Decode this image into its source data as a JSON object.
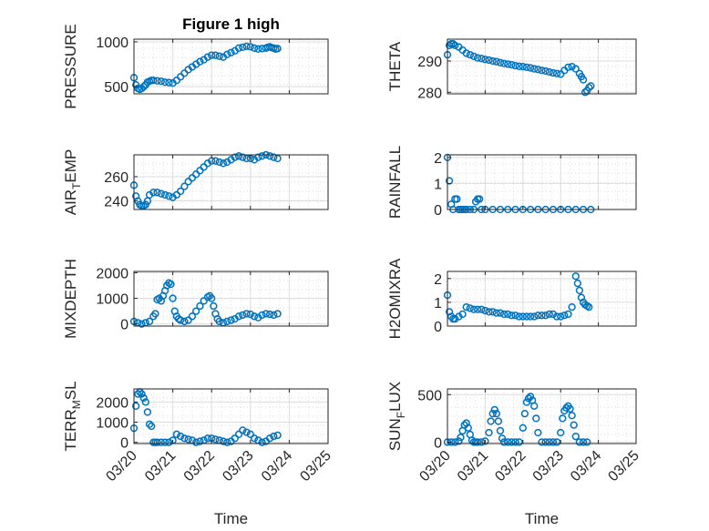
{
  "figure": {
    "title": "Figure 1 high"
  },
  "chart_data": [
    {
      "id": "pressure",
      "type": "scatter",
      "title": "Figure 1 high",
      "ylabel": "PRESSURE",
      "ylabel_sub": "",
      "ylabel_tail": "",
      "xlabel": "",
      "ylim": [
        420,
        1030
      ],
      "yticks": [
        500,
        1000
      ],
      "x": [
        0.0,
        0.05,
        0.1,
        0.15,
        0.2,
        0.25,
        0.3,
        0.35,
        0.4,
        0.45,
        0.5,
        0.6,
        0.7,
        0.8,
        0.9,
        1.0,
        1.1,
        1.2,
        1.3,
        1.4,
        1.5,
        1.6,
        1.7,
        1.8,
        1.9,
        2.0,
        2.1,
        2.2,
        2.3,
        2.4,
        2.5,
        2.6,
        2.7,
        2.8,
        2.9,
        3.0,
        3.1,
        3.2,
        3.3,
        3.4,
        3.45,
        3.5,
        3.55,
        3.6,
        3.65,
        3.7
      ],
      "y": [
        600,
        520,
        480,
        470,
        480,
        500,
        520,
        550,
        560,
        570,
        570,
        565,
        560,
        550,
        545,
        540,
        570,
        610,
        650,
        690,
        720,
        750,
        780,
        800,
        830,
        850,
        850,
        840,
        830,
        860,
        880,
        900,
        930,
        940,
        950,
        945,
        930,
        920,
        925,
        930,
        940,
        945,
        935,
        930,
        920,
        925
      ]
    },
    {
      "id": "theta",
      "type": "scatter",
      "title": "",
      "ylabel": "THETA",
      "ylabel_sub": "",
      "ylabel_tail": "",
      "xlabel": "",
      "ylim": [
        279.5,
        297
      ],
      "yticks": [
        280,
        290
      ],
      "x": [
        0.0,
        0.05,
        0.1,
        0.15,
        0.2,
        0.3,
        0.4,
        0.5,
        0.6,
        0.7,
        0.8,
        0.9,
        1.0,
        1.1,
        1.2,
        1.3,
        1.4,
        1.5,
        1.6,
        1.7,
        1.8,
        1.9,
        2.0,
        2.1,
        2.2,
        2.3,
        2.4,
        2.5,
        2.6,
        2.7,
        2.8,
        2.9,
        3.0,
        3.1,
        3.2,
        3.3,
        3.4,
        3.5,
        3.55,
        3.6,
        3.65,
        3.7,
        3.75,
        3.8
      ],
      "y": [
        292,
        295,
        295.5,
        295.5,
        295,
        294.5,
        293.5,
        292.5,
        292,
        291.5,
        291,
        290.8,
        290.5,
        290.3,
        290,
        289.8,
        289.5,
        289.2,
        289,
        288.8,
        288.5,
        288.3,
        288.2,
        288,
        287.8,
        287.5,
        287.3,
        287,
        286.8,
        286.5,
        286.2,
        286,
        285.8,
        287,
        288,
        288.2,
        287.5,
        286,
        285,
        284,
        280,
        280.5,
        281.5,
        282
      ]
    },
    {
      "id": "air_temp",
      "type": "scatter",
      "title": "",
      "ylabel": "AIR",
      "ylabel_sub": "T",
      "ylabel_tail": "EMP",
      "xlabel": "",
      "ylim": [
        233,
        278
      ],
      "yticks": [
        240,
        260
      ],
      "x": [
        0.0,
        0.05,
        0.1,
        0.15,
        0.2,
        0.25,
        0.3,
        0.35,
        0.4,
        0.5,
        0.6,
        0.7,
        0.8,
        0.9,
        1.0,
        1.1,
        1.2,
        1.3,
        1.4,
        1.5,
        1.6,
        1.7,
        1.8,
        1.9,
        2.0,
        2.1,
        2.2,
        2.3,
        2.4,
        2.5,
        2.6,
        2.7,
        2.8,
        2.9,
        3.0,
        3.1,
        3.2,
        3.3,
        3.4,
        3.5,
        3.6,
        3.7
      ],
      "y": [
        253,
        244,
        240,
        237,
        236,
        236,
        237,
        240,
        245,
        247,
        247,
        246,
        245,
        244,
        243,
        245,
        248,
        252,
        256,
        259,
        262,
        265,
        268,
        271,
        273,
        273,
        272,
        271,
        272,
        274,
        276,
        277,
        276,
        275,
        275,
        274,
        276,
        277,
        278,
        277,
        276,
        275
      ]
    },
    {
      "id": "rainfall",
      "type": "scatter",
      "title": "",
      "ylabel": "RAINFALL",
      "ylabel_sub": "",
      "ylabel_tail": "",
      "xlabel": "",
      "ylim": [
        0,
        2.1
      ],
      "yticks": [
        0,
        1,
        2
      ],
      "x": [
        0.0,
        0.05,
        0.1,
        0.15,
        0.2,
        0.25,
        0.3,
        0.35,
        0.4,
        0.45,
        0.5,
        0.6,
        0.7,
        0.75,
        0.8,
        0.85,
        0.9,
        1.0,
        1.2,
        1.4,
        1.6,
        1.8,
        2.0,
        2.2,
        2.4,
        2.6,
        2.8,
        3.0,
        3.2,
        3.4,
        3.6,
        3.8
      ],
      "y": [
        2,
        1.1,
        0.2,
        0,
        0.4,
        0.4,
        0,
        0,
        0,
        0,
        0,
        0,
        0,
        0.3,
        0.4,
        0.4,
        0,
        0,
        0,
        0,
        0,
        0,
        0,
        0,
        0,
        0,
        0,
        0,
        0,
        0,
        0,
        0
      ]
    },
    {
      "id": "mixdepth",
      "type": "scatter",
      "title": "",
      "ylabel": "MIXDEPTH",
      "ylabel_sub": "",
      "ylabel_tail": "",
      "xlabel": "",
      "ylim": [
        -80,
        2050
      ],
      "yticks": [
        0,
        1000,
        2000
      ],
      "x": [
        0.0,
        0.1,
        0.2,
        0.3,
        0.4,
        0.5,
        0.55,
        0.6,
        0.65,
        0.7,
        0.75,
        0.8,
        0.85,
        0.9,
        0.95,
        1.0,
        1.05,
        1.1,
        1.15,
        1.2,
        1.3,
        1.4,
        1.5,
        1.6,
        1.7,
        1.8,
        1.9,
        1.95,
        2.0,
        2.05,
        2.1,
        2.15,
        2.2,
        2.3,
        2.4,
        2.5,
        2.6,
        2.7,
        2.8,
        2.9,
        3.0,
        3.1,
        3.2,
        3.3,
        3.4,
        3.5,
        3.6,
        3.7
      ],
      "y": [
        100,
        50,
        0,
        50,
        100,
        300,
        400,
        950,
        1000,
        900,
        1100,
        1300,
        1500,
        1600,
        1550,
        1000,
        500,
        300,
        200,
        150,
        100,
        150,
        300,
        500,
        700,
        900,
        1050,
        1100,
        1000,
        700,
        400,
        200,
        100,
        50,
        100,
        150,
        200,
        300,
        350,
        400,
        380,
        300,
        250,
        350,
        400,
        380,
        350,
        400
      ]
    },
    {
      "id": "h2omixra",
      "type": "scatter",
      "title": "",
      "ylabel": "H2OMIXRA",
      "ylabel_sub": "",
      "ylabel_tail": "",
      "xlabel": "",
      "ylim": [
        0,
        2.3
      ],
      "yticks": [
        0,
        1,
        2
      ],
      "x": [
        0.0,
        0.05,
        0.1,
        0.15,
        0.2,
        0.3,
        0.4,
        0.5,
        0.6,
        0.7,
        0.8,
        0.9,
        1.0,
        1.1,
        1.2,
        1.3,
        1.4,
        1.5,
        1.6,
        1.7,
        1.8,
        1.9,
        2.0,
        2.1,
        2.2,
        2.3,
        2.4,
        2.5,
        2.6,
        2.7,
        2.8,
        2.9,
        3.0,
        3.1,
        3.2,
        3.3,
        3.4,
        3.45,
        3.5,
        3.55,
        3.6,
        3.65,
        3.7,
        3.75
      ],
      "y": [
        1.3,
        0.6,
        0.4,
        0.3,
        0.3,
        0.4,
        0.5,
        0.8,
        0.75,
        0.7,
        0.7,
        0.7,
        0.65,
        0.6,
        0.6,
        0.55,
        0.55,
        0.5,
        0.5,
        0.45,
        0.45,
        0.4,
        0.4,
        0.4,
        0.4,
        0.4,
        0.45,
        0.45,
        0.45,
        0.5,
        0.5,
        0.4,
        0.4,
        0.45,
        0.5,
        0.8,
        2.1,
        1.8,
        1.5,
        1.2,
        1.0,
        0.9,
        0.85,
        0.8
      ]
    },
    {
      "id": "terr_msl",
      "type": "scatter",
      "title": "",
      "ylabel": "TERR",
      "ylabel_sub": "M",
      "ylabel_tail": "SL",
      "xlabel": "Time",
      "ylim": [
        -60,
        2650
      ],
      "yticks": [
        0,
        1000,
        2000
      ],
      "xticklabels": [
        "03/20",
        "03/21",
        "03/22",
        "03/23",
        "03/24",
        "03/25"
      ],
      "xlim": [
        0,
        5
      ],
      "x": [
        0.0,
        0.05,
        0.1,
        0.15,
        0.2,
        0.25,
        0.3,
        0.35,
        0.4,
        0.45,
        0.5,
        0.55,
        0.6,
        0.7,
        0.8,
        0.9,
        1.0,
        1.1,
        1.2,
        1.3,
        1.4,
        1.5,
        1.6,
        1.7,
        1.8,
        1.9,
        2.0,
        2.1,
        2.2,
        2.3,
        2.4,
        2.5,
        2.6,
        2.7,
        2.8,
        2.9,
        3.0,
        3.1,
        3.2,
        3.3,
        3.4,
        3.5,
        3.6,
        3.7
      ],
      "y": [
        700,
        1800,
        2400,
        2500,
        2400,
        2200,
        2000,
        1500,
        900,
        800,
        0,
        0,
        0,
        0,
        0,
        0,
        100,
        400,
        300,
        200,
        150,
        100,
        0,
        50,
        100,
        200,
        200,
        150,
        100,
        50,
        0,
        50,
        200,
        400,
        600,
        500,
        400,
        200,
        100,
        0,
        50,
        200,
        300,
        350
      ]
    },
    {
      "id": "sun_flux",
      "type": "scatter",
      "title": "",
      "ylabel": "SUN",
      "ylabel_sub": "F",
      "ylabel_tail": "LUX",
      "xlabel": "Time",
      "ylim": [
        -15,
        560
      ],
      "yticks": [
        0,
        500
      ],
      "xticklabels": [
        "03/20",
        "03/21",
        "03/22",
        "03/23",
        "03/24",
        "03/25"
      ],
      "xlim": [
        0,
        5
      ],
      "x": [
        0.0,
        0.1,
        0.2,
        0.3,
        0.35,
        0.4,
        0.45,
        0.5,
        0.55,
        0.6,
        0.65,
        0.7,
        0.75,
        0.8,
        0.9,
        1.0,
        1.1,
        1.15,
        1.2,
        1.25,
        1.3,
        1.35,
        1.4,
        1.45,
        1.5,
        1.6,
        1.7,
        1.8,
        1.9,
        2.0,
        2.05,
        2.1,
        2.15,
        2.2,
        2.25,
        2.3,
        2.35,
        2.4,
        2.5,
        2.6,
        2.7,
        2.8,
        2.9,
        3.0,
        3.05,
        3.1,
        3.15,
        3.2,
        3.25,
        3.3,
        3.35,
        3.4,
        3.5,
        3.6,
        3.7
      ],
      "y": [
        0,
        0,
        0,
        10,
        50,
        120,
        180,
        200,
        150,
        80,
        20,
        0,
        0,
        0,
        0,
        10,
        100,
        220,
        300,
        340,
        300,
        220,
        120,
        40,
        0,
        0,
        0,
        0,
        0,
        150,
        300,
        420,
        460,
        480,
        440,
        380,
        250,
        100,
        0,
        0,
        0,
        0,
        0,
        100,
        250,
        330,
        360,
        380,
        350,
        280,
        180,
        60,
        0,
        0,
        0
      ]
    }
  ]
}
